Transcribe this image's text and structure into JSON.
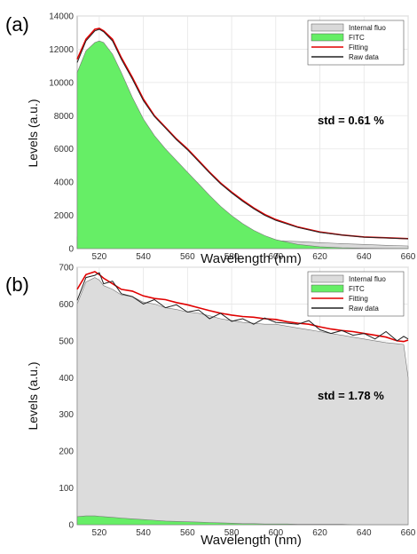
{
  "chart_data": [
    {
      "type": "area",
      "panel_label": "(a)",
      "xlabel": "Wavelength (nm)",
      "ylabel": "Levels (a.u.)",
      "xlim": [
        510,
        660
      ],
      "ylim": [
        0,
        14000
      ],
      "x_ticks": [
        520,
        540,
        560,
        580,
        600,
        620,
        640,
        660
      ],
      "y_ticks": [
        0,
        2000,
        4000,
        6000,
        8000,
        10000,
        12000,
        14000
      ],
      "grid": true,
      "legend_position": "top-right",
      "annotation": "std = 0.61 %",
      "x": [
        510,
        514,
        518,
        520,
        522,
        526,
        530,
        535,
        540,
        545,
        550,
        555,
        560,
        565,
        570,
        575,
        580,
        585,
        590,
        595,
        600,
        610,
        620,
        630,
        640,
        650,
        660
      ],
      "series": [
        {
          "name": "Internal fluo",
          "kind": "fill",
          "color": "#d9d9d9",
          "values": [
            720,
            740,
            740,
            740,
            740,
            730,
            720,
            710,
            700,
            690,
            680,
            670,
            660,
            650,
            630,
            610,
            590,
            560,
            540,
            510,
            480,
            420,
            360,
            300,
            250,
            200,
            160
          ]
        },
        {
          "name": "FITC",
          "kind": "fill",
          "color": "#66ee66",
          "values": [
            10600,
            11900,
            12400,
            12500,
            12400,
            11700,
            10600,
            9100,
            7800,
            6800,
            6000,
            5300,
            4600,
            3900,
            3200,
            2550,
            1980,
            1500,
            1100,
            780,
            540,
            250,
            110,
            50,
            20,
            10,
            5
          ]
        },
        {
          "name": "Fitting",
          "kind": "line",
          "color": "#e00000",
          "values": [
            11400,
            12600,
            13200,
            13250,
            13100,
            12600,
            11500,
            10300,
            9000,
            8000,
            7300,
            6600,
            6000,
            5300,
            4600,
            3950,
            3400,
            2900,
            2450,
            2050,
            1750,
            1300,
            1000,
            820,
            700,
            650,
            600
          ]
        },
        {
          "name": "Raw data",
          "kind": "line",
          "color": "#222222",
          "values": [
            11200,
            12500,
            13100,
            13200,
            13050,
            12500,
            11400,
            10200,
            8900,
            7950,
            7250,
            6550,
            5950,
            5250,
            4550,
            3900,
            3350,
            2850,
            2400,
            2000,
            1700,
            1270,
            980,
            810,
            690,
            640,
            590
          ]
        }
      ]
    },
    {
      "type": "area",
      "panel_label": "(b)",
      "xlabel": "Wavelength (nm)",
      "ylabel": "Levels (a.u.)",
      "xlim": [
        510,
        660
      ],
      "ylim": [
        0,
        700
      ],
      "x_ticks": [
        520,
        540,
        560,
        580,
        600,
        620,
        640,
        660
      ],
      "y_ticks": [
        0,
        100,
        200,
        300,
        400,
        500,
        600,
        700
      ],
      "grid": true,
      "legend_position": "top-right",
      "annotation": "std = 1.78 %",
      "x": [
        510,
        514,
        518,
        520,
        522,
        526,
        530,
        535,
        540,
        545,
        550,
        555,
        560,
        565,
        570,
        575,
        580,
        585,
        590,
        595,
        600,
        605,
        610,
        615,
        620,
        625,
        630,
        635,
        640,
        645,
        650,
        655,
        658,
        660
      ],
      "series": [
        {
          "name": "Internal fluo",
          "kind": "fill",
          "color": "#dcdcdc",
          "values": [
            600,
            660,
            672,
            665,
            650,
            640,
            625,
            620,
            605,
            600,
            590,
            585,
            578,
            575,
            568,
            560,
            555,
            550,
            548,
            545,
            545,
            540,
            535,
            530,
            525,
            520,
            515,
            510,
            505,
            500,
            495,
            492,
            490,
            400
          ]
        },
        {
          "name": "FITC",
          "kind": "fill",
          "color": "#66ee66",
          "values": [
            22,
            24,
            24,
            23,
            22,
            20,
            18,
            16,
            14,
            12,
            10,
            9,
            8,
            7,
            6,
            5,
            4,
            3,
            3,
            2,
            2,
            2,
            1,
            1,
            1,
            1,
            1,
            0,
            0,
            0,
            0,
            0,
            0,
            0
          ]
        },
        {
          "name": "Fitting",
          "kind": "line",
          "color": "#e00000",
          "values": [
            640,
            680,
            688,
            680,
            670,
            655,
            640,
            635,
            622,
            615,
            612,
            604,
            598,
            590,
            582,
            575,
            570,
            566,
            564,
            560,
            558,
            552,
            548,
            545,
            538,
            532,
            528,
            525,
            520,
            515,
            510,
            500,
            498,
            502
          ]
        },
        {
          "name": "Raw data",
          "kind": "line",
          "color": "#222222",
          "values": [
            610,
            672,
            678,
            685,
            655,
            662,
            628,
            620,
            600,
            612,
            590,
            598,
            578,
            584,
            560,
            575,
            553,
            560,
            545,
            562,
            550,
            548,
            545,
            555,
            530,
            520,
            528,
            515,
            520,
            505,
            525,
            500,
            512,
            505
          ]
        }
      ]
    }
  ]
}
